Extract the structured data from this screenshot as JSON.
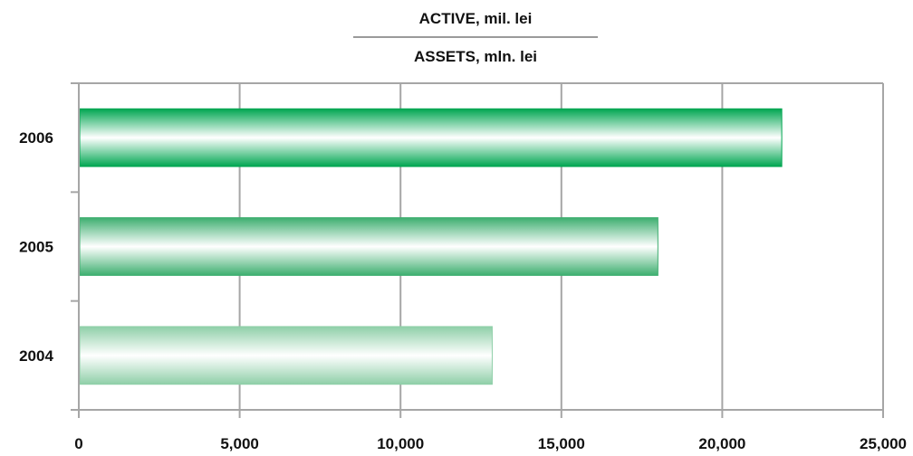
{
  "chart_data": {
    "type": "bar",
    "orientation": "horizontal",
    "title": "ACTIVE, mil. lei",
    "subtitle": "ASSETS, mln. lei",
    "categories": [
      "2006",
      "2005",
      "2004"
    ],
    "values": [
      21850,
      18000,
      12850
    ],
    "xlim": [
      0,
      25000
    ],
    "x_ticks": [
      0,
      5000,
      10000,
      15000,
      20000,
      25000
    ],
    "x_tick_labels": [
      "0",
      "5,000",
      "10,000",
      "15,000",
      "20,000",
      "25,000"
    ],
    "grid": "vertical",
    "legend": "none",
    "bar_colors": [
      "#00a651",
      "#3dae6f",
      "#8fcfa8"
    ]
  }
}
